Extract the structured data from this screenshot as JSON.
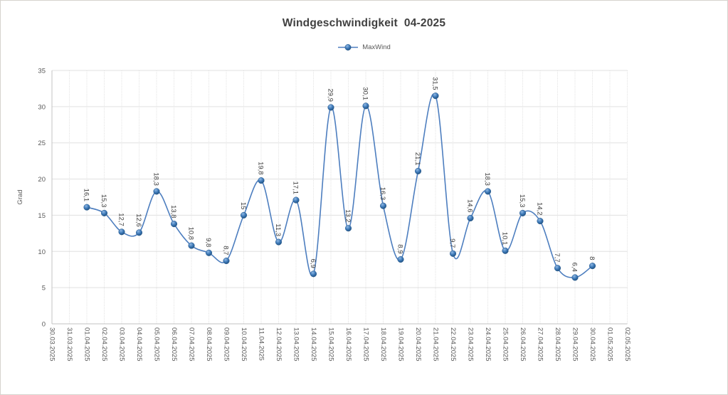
{
  "chart_data": {
    "type": "line",
    "title": "Windgeschwindigkeit  04-2025",
    "ylabel": "Grad",
    "ylim": [
      0,
      35
    ],
    "ytick_step": 5,
    "grid": "both",
    "legend_position": "top-center",
    "smoothed": true,
    "decimal_separator": ",",
    "categories": [
      "30.03.2025",
      "31.03.2025",
      "01.04.2025",
      "02.04.2025",
      "03.04.2025",
      "04.04.2025",
      "05.04.2025",
      "06.04.2025",
      "07.04.2025",
      "08.04.2025",
      "09.04.2025",
      "10.04.2025",
      "11.04.2025",
      "12.04.2025",
      "13.04.2025",
      "14.04.2025",
      "15.04.2025",
      "16.04.2025",
      "17.04.2025",
      "18.04.2025",
      "19.04.2025",
      "20.04.2025",
      "21.04.2025",
      "22.04.2025",
      "23.04.2025",
      "24.04.2025",
      "25.04.2025",
      "26.04.2025",
      "27.04.2025",
      "28.04.2025",
      "29.04.2025",
      "30.04.2025",
      "01.05.2025",
      "02.05.2025"
    ],
    "series": [
      {
        "name": "MaxWind",
        "start_category": "01.04.2025",
        "start_index": 2,
        "values": [
          16.1,
          15.3,
          12.7,
          12.6,
          18.3,
          13.8,
          10.8,
          9.8,
          8.7,
          15,
          19.8,
          11.3,
          17.1,
          6.9,
          29.9,
          13.2,
          30.1,
          16.3,
          8.9,
          21.1,
          31.5,
          9.7,
          14.6,
          18.3,
          10.1,
          15.3,
          14.2,
          7.7,
          6.4,
          8
        ]
      }
    ],
    "colors": {
      "line": "#4d7ebf",
      "marker_highlight": "#8fb8e4",
      "marker_mid": "#3a76b5",
      "marker_edge": "#1f4e79",
      "gridline": "#e0e0e0",
      "axis_line": "#c3c3c3",
      "tick_text": "#595959",
      "data_label_text": "#3d3d3d",
      "title_text": "#404040"
    }
  }
}
